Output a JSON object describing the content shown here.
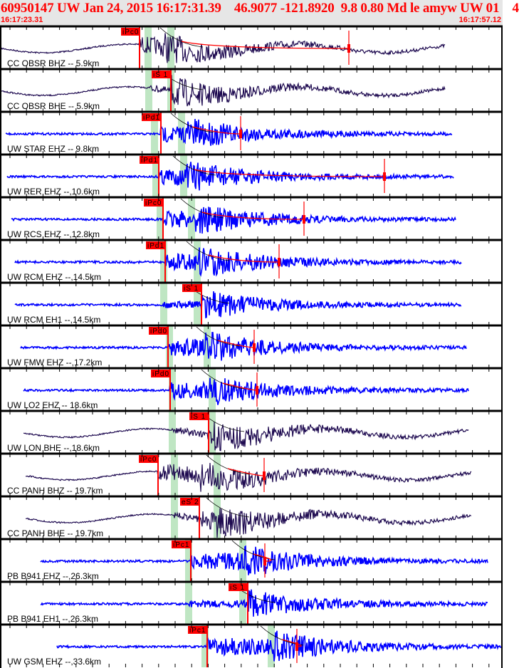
{
  "header": {
    "title": "60950147 UW Jan 24, 2015 16:17:31.39    46.9077 -121.8920  9.8 0.80 Md le amyw UW 01    4",
    "start_time": "16:17:23.31",
    "end_time": "16:17:57.12"
  },
  "colors": {
    "header_bg": "#e6e6e6",
    "header_text": "#ff0000",
    "pick": "#ff0000",
    "window": "#bfe6c3",
    "broadband": "#1e0a50",
    "short_period": "#0000ff"
  },
  "traces": [
    {
      "label": "CC OBSR BHZ -- 5.9km",
      "pick": "iPc0",
      "type": "broadband"
    },
    {
      "label": "CC OBSR BHE -- 5.9km",
      "pick": "iS 1",
      "type": "broadband"
    },
    {
      "label": "UW STAR EHZ -- 9.8km",
      "pick": "iPd1",
      "type": "short_period"
    },
    {
      "label": "UW RER EHZ --,10.6km",
      "pick": "iPd1",
      "type": "short_period"
    },
    {
      "label": "UW RCS EHZ --,12.8km",
      "pick": "iPc0",
      "type": "short_period"
    },
    {
      "label": "UW RCM EHZ --,14.5km",
      "pick": "iPd1",
      "type": "short_period"
    },
    {
      "label": "UW RCM EH1 --,14.5km",
      "pick": "iS 1",
      "type": "short_period"
    },
    {
      "label": "UW FMW EHZ --,17.2km",
      "pick": "iPd0",
      "type": "short_period"
    },
    {
      "label": "UW LO2 EHZ -- 18.6km",
      "pick": "iPd0",
      "type": "short_period"
    },
    {
      "label": "UW LON BHE --,18.6km",
      "pick": "iS 1",
      "type": "broadband"
    },
    {
      "label": "CC PANH BHZ -- 19.7km",
      "pick": "iPc0",
      "type": "broadband"
    },
    {
      "label": "CC PANH BHE -- 19.7km",
      "pick": "eS 2",
      "type": "broadband"
    },
    {
      "label": "PB B941 EHZ --,26.3km",
      "pick": "iPc1",
      "type": "short_period"
    },
    {
      "label": "PB B941 EH1 --,26.3km",
      "pick": "iS 1",
      "type": "short_period"
    },
    {
      "label": "UW GSM EHZ --,33.6km",
      "pick": "iPc1",
      "type": "short_period"
    }
  ]
}
